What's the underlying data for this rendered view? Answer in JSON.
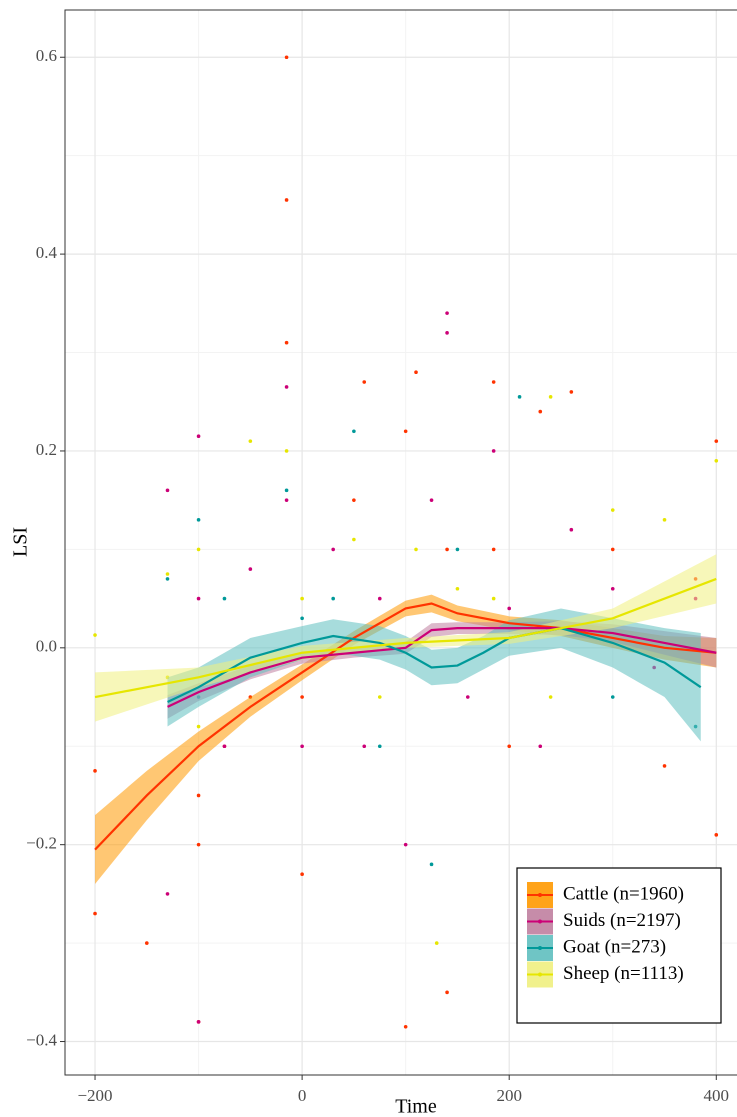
{
  "chart_data": {
    "type": "scatter_smooth",
    "x_label": "Time",
    "y_label": "LSI",
    "xlim": [
      -229,
      420
    ],
    "ylim": [
      -0.434,
      0.648
    ],
    "xticks": [
      {
        "value": -200,
        "label": "−200"
      },
      0,
      200,
      400
    ],
    "yticks": [
      {
        "value": -0.4,
        "label": "−0.4"
      },
      {
        "value": -0.2,
        "label": "−0.2"
      },
      {
        "value": 0,
        "label": "0.0"
      },
      0.2,
      0.4,
      0.6
    ],
    "minor_xticks": [
      -100,
      100,
      300
    ],
    "minor_yticks": [
      -0.3,
      -0.1,
      0.1,
      0.3,
      0.5
    ],
    "grid": true,
    "legend": "bottom-right",
    "series": [
      {
        "name": "Cattle (n=1960)",
        "color": "#ff3300",
        "band_color": "#ff9900",
        "x": [
          -200,
          -200,
          -150,
          -100,
          -100,
          -100,
          -75,
          -50,
          -15,
          -15,
          -15,
          0,
          0,
          50,
          60,
          100,
          100,
          110,
          140,
          140,
          185,
          185,
          200,
          230,
          260,
          300,
          350,
          400,
          400,
          380
        ],
        "values": [
          -0.27,
          -0.125,
          -0.3,
          -0.38,
          -0.2,
          -0.15,
          -0.1,
          -0.05,
          0.6,
          0.455,
          0.31,
          -0.23,
          -0.05,
          0.15,
          0.27,
          0.22,
          -0.385,
          0.28,
          -0.35,
          0.1,
          0.27,
          0.1,
          -0.1,
          0.24,
          0.26,
          0.1,
          -0.12,
          0.21,
          -0.19,
          0.07
        ],
        "smooth": {
          "x": [
            -200,
            -150,
            -100,
            -50,
            0,
            50,
            100,
            125,
            150,
            200,
            250,
            300,
            350,
            400
          ],
          "values": [
            -0.205,
            -0.15,
            -0.1,
            -0.06,
            -0.025,
            0.01,
            0.04,
            0.045,
            0.035,
            0.025,
            0.02,
            0.01,
            0,
            -0.005
          ],
          "lower": [
            -0.24,
            -0.175,
            -0.115,
            -0.07,
            -0.033,
            0.003,
            0.032,
            0.036,
            0.027,
            0.018,
            0.012,
            0,
            -0.012,
            -0.02
          ],
          "upper": [
            -0.17,
            -0.125,
            -0.085,
            -0.05,
            -0.017,
            0.017,
            0.048,
            0.054,
            0.043,
            0.032,
            0.028,
            0.02,
            0.012,
            0.01
          ]
        }
      },
      {
        "name": "Suids (n=2197)",
        "color": "#cc0077",
        "band_color": "#c080a0",
        "x": [
          -130,
          -130,
          -100,
          -100,
          -100,
          -75,
          -50,
          -15,
          -15,
          0,
          30,
          60,
          75,
          100,
          125,
          140,
          140,
          160,
          185,
          200,
          230,
          260,
          300,
          340,
          380
        ],
        "values": [
          0.16,
          -0.25,
          0.215,
          -0.38,
          0.05,
          -0.1,
          0.08,
          0.265,
          0.15,
          -0.1,
          0.1,
          -0.1,
          0.05,
          -0.2,
          0.15,
          0.34,
          0.32,
          -0.05,
          0.2,
          0.04,
          -0.1,
          0.12,
          0.06,
          -0.02,
          0.05
        ],
        "smooth": {
          "x": [
            -130,
            -100,
            -50,
            0,
            50,
            100,
            125,
            150,
            200,
            250,
            300,
            350,
            400
          ],
          "values": [
            -0.06,
            -0.045,
            -0.025,
            -0.01,
            -0.005,
            0,
            0.018,
            0.02,
            0.02,
            0.02,
            0.015,
            0.005,
            -0.005
          ],
          "lower": [
            -0.072,
            -0.054,
            -0.032,
            -0.016,
            -0.01,
            -0.006,
            0.011,
            0.014,
            0.014,
            0.013,
            0.006,
            -0.007,
            -0.02
          ],
          "upper": [
            -0.048,
            -0.036,
            -0.018,
            -0.004,
            0,
            0.006,
            0.025,
            0.026,
            0.026,
            0.027,
            0.024,
            0.017,
            0.01
          ]
        }
      },
      {
        "name": "Goat (n=273)",
        "color": "#009999",
        "band_color": "#5fbfbf",
        "x": [
          -130,
          -100,
          -100,
          -75,
          -15,
          0,
          30,
          50,
          75,
          125,
          150,
          210,
          250,
          300,
          380
        ],
        "values": [
          0.07,
          0.13,
          -0.05,
          0.05,
          0.16,
          0.03,
          0.05,
          0.22,
          -0.1,
          -0.22,
          0.1,
          0.255,
          0.02,
          -0.05,
          -0.08
        ],
        "smooth": {
          "x": [
            -130,
            -100,
            -50,
            0,
            30,
            75,
            100,
            125,
            150,
            175,
            200,
            250,
            300,
            350,
            385
          ],
          "values": [
            -0.055,
            -0.04,
            -0.01,
            0.005,
            0.012,
            0.005,
            -0.005,
            -0.02,
            -0.018,
            -0.005,
            0.01,
            0.02,
            0.005,
            -0.015,
            -0.04
          ],
          "lower": [
            -0.08,
            -0.06,
            -0.03,
            -0.012,
            -0.005,
            -0.012,
            -0.022,
            -0.038,
            -0.036,
            -0.022,
            -0.008,
            0,
            -0.02,
            -0.05,
            -0.095
          ],
          "upper": [
            -0.03,
            -0.02,
            0.01,
            0.022,
            0.029,
            0.022,
            0.012,
            -0.002,
            0,
            0.012,
            0.028,
            0.04,
            0.03,
            0.02,
            0.015
          ]
        }
      },
      {
        "name": "Sheep (n=1113)",
        "color": "#e6e600",
        "band_color": "#f0f080",
        "x": [
          -200,
          -130,
          -130,
          -100,
          -100,
          -50,
          -15,
          0,
          50,
          75,
          110,
          130,
          150,
          185,
          240,
          240,
          300,
          350,
          400
        ],
        "values": [
          0.013,
          0.075,
          -0.03,
          0.1,
          -0.08,
          0.21,
          0.2,
          0.05,
          0.11,
          -0.05,
          0.1,
          -0.3,
          0.06,
          0.05,
          0.255,
          -0.05,
          0.14,
          0.13,
          0.19
        ],
        "smooth": {
          "x": [
            -200,
            -100,
            0,
            100,
            200,
            300,
            400
          ],
          "values": [
            -0.05,
            -0.03,
            -0.005,
            0.005,
            0.01,
            0.03,
            0.07
          ],
          "lower": [
            -0.075,
            -0.04,
            -0.012,
            0,
            0.004,
            0.02,
            0.045
          ],
          "upper": [
            -0.025,
            -0.02,
            0.002,
            0.01,
            0.016,
            0.04,
            0.095
          ]
        }
      }
    ]
  }
}
